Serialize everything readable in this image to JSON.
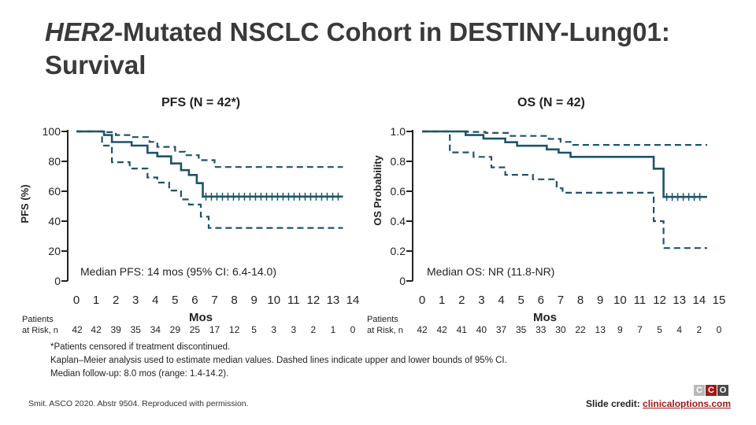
{
  "slide": {
    "title_italic": "HER2",
    "title_rest": "-Mutated NSCLC Cohort in DESTINY-Lung01: Survival",
    "footnotes": [
      "*Patients censored if treatment discontinued.",
      "Kaplan–Meier analysis used to estimate median values. Dashed lines indicate upper and lower bounds of 95% CI.",
      "Median follow-up: 8.0 mos (range: 1.4-14.2)."
    ],
    "citation": "Smit. ASCO 2020. Abstr 9504. Reproduced with permission.",
    "credit_label": "Slide credit:",
    "credit_link": "clinicaloptions.com",
    "logo_letters": [
      "C",
      "C",
      "O"
    ],
    "logo_colors": [
      "#b9b9b9",
      "#a01818",
      "#4a4a4a"
    ],
    "colors": {
      "curve": "#1f5468",
      "axis": "#222222"
    }
  },
  "chart_data": [
    {
      "type": "line",
      "title": "PFS (N = 42*)",
      "ylabel": "PFS (%)",
      "xlabel": "Mos",
      "xlim": [
        0,
        14
      ],
      "ylim": [
        0,
        100
      ],
      "x_ticks": [
        "0",
        "1",
        "2",
        "3",
        "4",
        "5",
        "6",
        "7",
        "8",
        "9",
        "10",
        "11",
        "12",
        "13",
        "14"
      ],
      "y_ticks": [
        "0",
        "20",
        "40",
        "60",
        "80",
        "100"
      ],
      "annotation": "Median PFS: 14 mos (95% CI: 6.4-14.0)",
      "risk_label_1": "Patients",
      "risk_label_2": "at Risk, n",
      "risk_counts": [
        "42",
        "42",
        "39",
        "35",
        "34",
        "29",
        "25",
        "17",
        "12",
        "5",
        "3",
        "3",
        "2",
        "1",
        "0"
      ],
      "series": [
        {
          "values": [
            [
              0,
              100
            ],
            [
              1.4,
              100
            ],
            [
              1.4,
              97.6
            ],
            [
              1.8,
              97.6
            ],
            [
              1.8,
              92.9
            ],
            [
              2.8,
              92.9
            ],
            [
              2.8,
              90.5
            ],
            [
              3.6,
              90.5
            ],
            [
              3.6,
              85.7
            ],
            [
              4.1,
              85.7
            ],
            [
              4.1,
              83.3
            ],
            [
              4.8,
              83.3
            ],
            [
              4.8,
              78.6
            ],
            [
              5.3,
              78.6
            ],
            [
              5.3,
              74.1
            ],
            [
              5.7,
              74.1
            ],
            [
              5.7,
              70.9
            ],
            [
              6.1,
              70.9
            ],
            [
              6.1,
              65.4
            ],
            [
              6.4,
              65.4
            ],
            [
              6.4,
              56.4
            ],
            [
              13.5,
              56.4
            ]
          ],
          "dashed": false
        },
        {
          "values": [
            [
              0,
              100
            ],
            [
              1.4,
              100
            ],
            [
              1.4,
              99.5
            ],
            [
              2.0,
              99.5
            ],
            [
              2.0,
              97.6
            ],
            [
              2.8,
              97.6
            ],
            [
              2.8,
              96.2
            ],
            [
              3.7,
              96.2
            ],
            [
              3.7,
              93.0
            ],
            [
              4.1,
              93.0
            ],
            [
              4.1,
              89.7
            ],
            [
              5.0,
              89.7
            ],
            [
              5.0,
              86.4
            ],
            [
              5.5,
              86.4
            ],
            [
              5.5,
              84.1
            ],
            [
              6.2,
              84.1
            ],
            [
              6.2,
              80.8
            ],
            [
              7.0,
              80.8
            ],
            [
              7.0,
              76.2
            ],
            [
              13.5,
              76.2
            ]
          ],
          "dashed": true
        },
        {
          "values": [
            [
              0,
              100
            ],
            [
              1.3,
              100
            ],
            [
              1.3,
              90.5
            ],
            [
              1.8,
              90.5
            ],
            [
              1.8,
              79.4
            ],
            [
              2.7,
              79.4
            ],
            [
              2.7,
              75.2
            ],
            [
              3.6,
              75.2
            ],
            [
              3.6,
              69.2
            ],
            [
              4.1,
              69.2
            ],
            [
              4.1,
              65.8
            ],
            [
              4.7,
              65.8
            ],
            [
              4.7,
              60.5
            ],
            [
              5.3,
              60.5
            ],
            [
              5.3,
              54.5
            ],
            [
              5.7,
              54.5
            ],
            [
              5.7,
              51.1
            ],
            [
              6.3,
              51.1
            ],
            [
              6.3,
              43.0
            ],
            [
              6.7,
              43.0
            ],
            [
              6.7,
              35.5
            ],
            [
              13.5,
              35.5
            ]
          ],
          "dashed": true
        }
      ]
    },
    {
      "type": "line",
      "title": "OS (N = 42)",
      "ylabel": "OS Probability",
      "xlabel": "Mos",
      "xlim": [
        0,
        15
      ],
      "ylim": [
        0,
        1.0
      ],
      "x_ticks": [
        "0",
        "1",
        "2",
        "3",
        "4",
        "5",
        "6",
        "7",
        "8",
        "9",
        "10",
        "11",
        "12",
        "13",
        "14",
        "15"
      ],
      "y_ticks": [
        "0",
        "0.2",
        "0.4",
        "0.6",
        "0.8",
        "1.0"
      ],
      "annotation": "Median OS: NR (11.8-NR)",
      "risk_label_1": "Patients",
      "risk_label_2": "at Risk, n",
      "risk_counts": [
        "42",
        "42",
        "41",
        "40",
        "37",
        "35",
        "33",
        "30",
        "22",
        "13",
        "9",
        "7",
        "5",
        "4",
        "2",
        "0"
      ],
      "series": [
        {
          "values": [
            [
              0,
              1.0
            ],
            [
              2.2,
              1.0
            ],
            [
              2.2,
              0.976
            ],
            [
              3.1,
              0.976
            ],
            [
              3.1,
              0.952
            ],
            [
              4.2,
              0.952
            ],
            [
              4.2,
              0.928
            ],
            [
              4.8,
              0.928
            ],
            [
              4.8,
              0.904
            ],
            [
              6.3,
              0.904
            ],
            [
              6.3,
              0.88
            ],
            [
              6.9,
              0.88
            ],
            [
              6.9,
              0.858
            ],
            [
              7.5,
              0.858
            ],
            [
              7.5,
              0.83
            ],
            [
              11.7,
              0.83
            ],
            [
              11.7,
              0.751
            ],
            [
              12.2,
              0.751
            ],
            [
              12.2,
              0.562
            ],
            [
              14.4,
              0.562
            ]
          ],
          "dashed": false
        },
        {
          "values": [
            [
              0,
              1.0
            ],
            [
              2.3,
              1.0
            ],
            [
              2.3,
              0.997
            ],
            [
              3.2,
              0.997
            ],
            [
              3.2,
              0.99
            ],
            [
              4.4,
              0.99
            ],
            [
              4.4,
              0.97
            ],
            [
              6.4,
              0.97
            ],
            [
              6.4,
              0.95
            ],
            [
              7.0,
              0.95
            ],
            [
              7.0,
              0.93
            ],
            [
              7.5,
              0.93
            ],
            [
              7.5,
              0.91
            ],
            [
              14.4,
              0.91
            ]
          ],
          "dashed": true
        },
        {
          "values": [
            [
              0,
              1.0
            ],
            [
              1.4,
              1.0
            ],
            [
              1.4,
              0.86
            ],
            [
              2.6,
              0.86
            ],
            [
              2.6,
              0.83
            ],
            [
              3.5,
              0.83
            ],
            [
              3.5,
              0.76
            ],
            [
              4.2,
              0.76
            ],
            [
              4.2,
              0.71
            ],
            [
              5.6,
              0.71
            ],
            [
              5.6,
              0.68
            ],
            [
              6.8,
              0.68
            ],
            [
              6.8,
              0.62
            ],
            [
              7.1,
              0.62
            ],
            [
              7.1,
              0.59
            ],
            [
              11.7,
              0.59
            ],
            [
              11.7,
              0.4
            ],
            [
              12.2,
              0.4
            ],
            [
              12.2,
              0.22
            ],
            [
              14.4,
              0.22
            ]
          ],
          "dashed": true
        }
      ]
    }
  ]
}
